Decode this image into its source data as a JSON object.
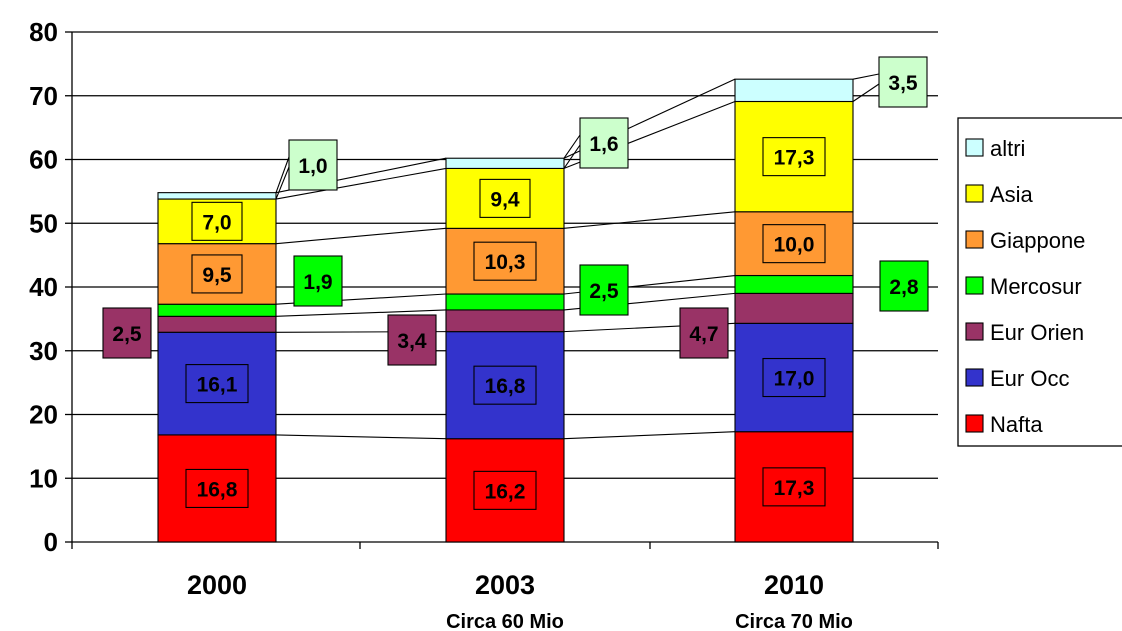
{
  "chart_data": {
    "type": "bar",
    "stacked": true,
    "categories": [
      "2000",
      "2003",
      "2010"
    ],
    "category_sublabels": [
      "",
      "Circa 60 Mio",
      "Circa 70 Mio"
    ],
    "ylim": [
      0,
      80
    ],
    "yticks": [
      0,
      10,
      20,
      30,
      40,
      50,
      60,
      70,
      80
    ],
    "grid": true,
    "legend_position": "right",
    "series": [
      {
        "name": "Nafta",
        "color": "#ff0000",
        "values": [
          16.8,
          16.2,
          17.3
        ],
        "labels": [
          "16,8",
          "16,2",
          "17,3"
        ]
      },
      {
        "name": "Eur Occ",
        "color": "#3333cc",
        "values": [
          16.1,
          16.8,
          17.0
        ],
        "labels": [
          "16,1",
          "16,8",
          "17,0"
        ]
      },
      {
        "name": "Eur Orien",
        "color": "#993366",
        "values": [
          2.5,
          3.4,
          4.7
        ],
        "labels": [
          "2,5",
          "3,4",
          "4,7"
        ]
      },
      {
        "name": "Mercosur",
        "color": "#00ff00",
        "values": [
          1.9,
          2.5,
          2.8
        ],
        "labels": [
          "1,9",
          "2,5",
          "2,8"
        ]
      },
      {
        "name": "Giappone",
        "color": "#ff9933",
        "values": [
          9.5,
          10.3,
          10.0
        ],
        "labels": [
          "9,5",
          "10,3",
          "10,0"
        ]
      },
      {
        "name": "Asia",
        "color": "#ffff00",
        "values": [
          7.0,
          9.4,
          17.3
        ],
        "labels": [
          "7,0",
          "9,4",
          "17,3"
        ]
      },
      {
        "name": "altri",
        "color": "#ccffff",
        "values": [
          1.0,
          1.6,
          3.5
        ],
        "labels": [
          "1,0",
          "1,6",
          "3,5"
        ]
      }
    ],
    "callout_colors": {
      "altri": "#ccffcc",
      "Mercosur": "#00ff00",
      "Eur Orien": "#993366"
    }
  }
}
